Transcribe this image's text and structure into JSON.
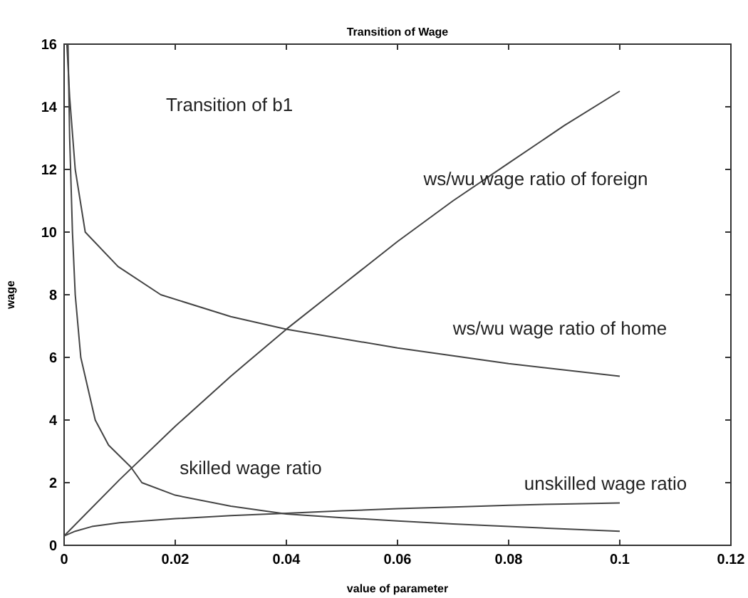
{
  "chart_data": {
    "type": "line",
    "title": "Transition of Wage",
    "xlabel": "value of parameter",
    "ylabel": "wage",
    "xlim": [
      0,
      0.12
    ],
    "ylim": [
      0,
      16
    ],
    "xticks": [
      0,
      0.02,
      0.04,
      0.06,
      0.08,
      0.1,
      0.12
    ],
    "yticks": [
      0,
      2,
      4,
      6,
      8,
      10,
      12,
      14,
      16
    ],
    "grid": false,
    "marker": "none",
    "line_style": "solid",
    "series": [
      {
        "name": "ws/wu wage ratio of foreign",
        "color": "#444444",
        "x": [
          0,
          0.01,
          0.02,
          0.03,
          0.04,
          0.05,
          0.06,
          0.07,
          0.08,
          0.09,
          0.1
        ],
        "values": [
          0.3,
          2.1,
          3.8,
          5.4,
          6.9,
          8.3,
          9.7,
          11.0,
          12.2,
          13.4,
          14.5
        ]
      },
      {
        "name": "ws/wu wage ratio of home",
        "color": "#444444",
        "x": [
          0.0005,
          0.001,
          0.002,
          0.0038,
          0.0097,
          0.0174,
          0.03,
          0.04,
          0.06,
          0.08,
          0.1
        ],
        "values": [
          16,
          14.3,
          12,
          10,
          8.9,
          8,
          7.3,
          6.9,
          6.3,
          5.8,
          5.4
        ]
      },
      {
        "name": "skilled wage ratio",
        "color": "#444444",
        "x": [
          0.0007,
          0.001,
          0.0015,
          0.002,
          0.003,
          0.0056,
          0.008,
          0.012,
          0.014,
          0.02,
          0.03,
          0.04,
          0.05,
          0.06,
          0.07,
          0.08,
          0.09,
          0.1
        ],
        "values": [
          16,
          13,
          10,
          8,
          6,
          4,
          3.2,
          2.5,
          2.0,
          1.6,
          1.25,
          1.0,
          0.88,
          0.78,
          0.68,
          0.6,
          0.52,
          0.45
        ]
      },
      {
        "name": "unskilled wage ratio",
        "color": "#444444",
        "x": [
          0,
          0.002,
          0.005,
          0.01,
          0.02,
          0.03,
          0.04,
          0.05,
          0.06,
          0.07,
          0.08,
          0.09,
          0.1
        ],
        "values": [
          0.3,
          0.45,
          0.6,
          0.72,
          0.85,
          0.95,
          1.02,
          1.1,
          1.17,
          1.22,
          1.28,
          1.32,
          1.35
        ]
      }
    ],
    "annotations": [
      "Transition of b1"
    ]
  }
}
